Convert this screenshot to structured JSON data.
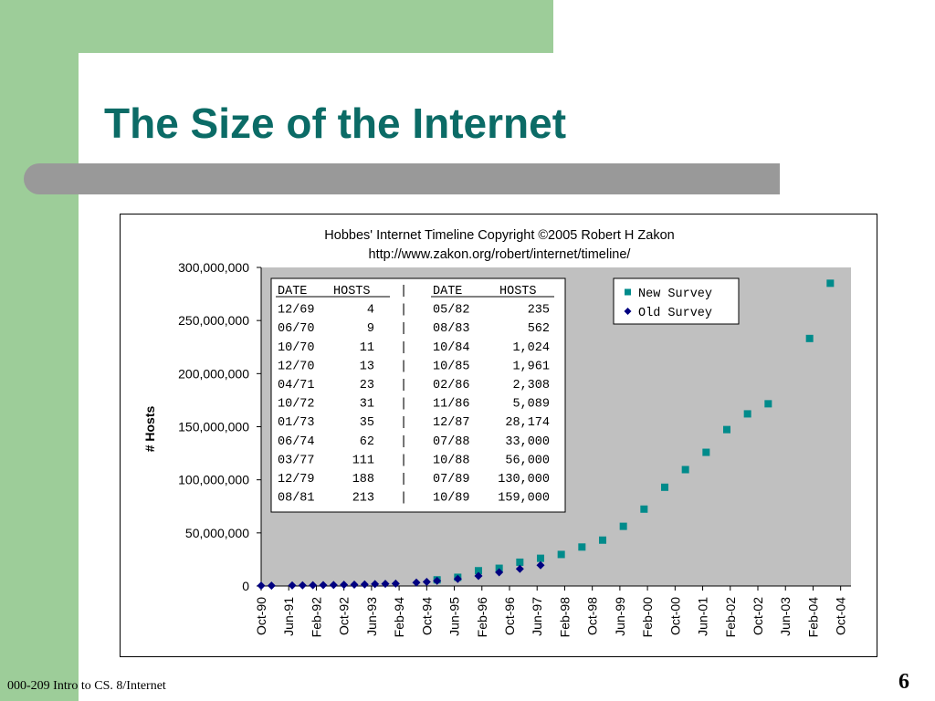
{
  "slide": {
    "title": "The Size of the Internet",
    "footer": "000-209 Intro to CS. 8/Internet",
    "page_number": "6"
  },
  "colors": {
    "accent_green": "#9dcd99",
    "title_teal": "#0b6b66",
    "bar_gray": "#999999",
    "plot_bg": "#c0c0c0",
    "new_survey": "#008b8b",
    "old_survey": "#000080"
  },
  "chart_data": {
    "type": "scatter",
    "title": "Hobbes' Internet Timeline Copyright ©2005 Robert H Zakon",
    "subtitle": "http://www.zakon.org/robert/internet/timeline/",
    "xlabel": "",
    "ylabel": "# Hosts",
    "ylim": [
      0,
      300000000
    ],
    "y_ticks": [
      "300,000,000",
      "250,000,000",
      "200,000,000",
      "150,000,000",
      "100,000,000",
      "50,000,000",
      "0"
    ],
    "y_tick_values": [
      300000000,
      250000000,
      200000000,
      150000000,
      100000000,
      50000000,
      0
    ],
    "x_tick_labels": [
      "Oct-90",
      "Jun-91",
      "Feb-92",
      "Oct-92",
      "Jun-93",
      "Feb-94",
      "Oct-94",
      "Jun-95",
      "Feb-96",
      "Oct-96",
      "Jun-97",
      "Feb-98",
      "Oct-98",
      "Jun-99",
      "Feb-00",
      "Oct-00",
      "Jun-01",
      "Feb-02",
      "Oct-02",
      "Jun-03",
      "Feb-04",
      "Oct-04"
    ],
    "xlim": [
      "1990-10",
      "2005-01"
    ],
    "grid": false,
    "legend_position": "top-right",
    "series": [
      {
        "name": "New Survey",
        "marker": "square",
        "x": [
          "1995-01",
          "1995-07",
          "1996-01",
          "1996-07",
          "1997-01",
          "1997-07",
          "1998-01",
          "1998-07",
          "1999-01",
          "1999-07",
          "2000-01",
          "2000-07",
          "2001-01",
          "2001-07",
          "2002-01",
          "2002-07",
          "2003-01",
          "2004-01",
          "2004-07"
        ],
        "y": [
          5800000,
          8200000,
          14400000,
          16700000,
          22400000,
          26100000,
          29700000,
          36700000,
          43200000,
          56200000,
          72400000,
          93000000,
          109600000,
          125900000,
          147300000,
          162100000,
          171600000,
          233100000,
          285100000
        ]
      },
      {
        "name": "Old Survey",
        "marker": "diamond",
        "x": [
          "1990-10",
          "1991-01",
          "1991-07",
          "1991-10",
          "1992-01",
          "1992-04",
          "1992-07",
          "1992-10",
          "1993-01",
          "1993-04",
          "1993-07",
          "1993-10",
          "1994-01",
          "1994-07",
          "1994-10",
          "1995-01",
          "1995-07",
          "1996-01",
          "1996-07",
          "1997-01",
          "1997-07"
        ],
        "y": [
          313000,
          376000,
          535000,
          617000,
          727000,
          890000,
          992000,
          1136000,
          1313000,
          1486000,
          1776000,
          2056000,
          2217000,
          3212000,
          3864000,
          4852000,
          6642000,
          9472000,
          12881000,
          16146000,
          19540000
        ]
      }
    ],
    "table": {
      "headers": [
        "DATE",
        "HOSTS",
        "|",
        "DATE",
        "HOSTS"
      ],
      "rows": [
        [
          "12/69",
          "4",
          "|",
          "05/82",
          "235"
        ],
        [
          "06/70",
          "9",
          "|",
          "08/83",
          "562"
        ],
        [
          "10/70",
          "11",
          "|",
          "10/84",
          "1,024"
        ],
        [
          "12/70",
          "13",
          "|",
          "10/85",
          "1,961"
        ],
        [
          "04/71",
          "23",
          "|",
          "02/86",
          "2,308"
        ],
        [
          "10/72",
          "31",
          "|",
          "11/86",
          "5,089"
        ],
        [
          "01/73",
          "35",
          "|",
          "12/87",
          "28,174"
        ],
        [
          "06/74",
          "62",
          "|",
          "07/88",
          "33,000"
        ],
        [
          "03/77",
          "111",
          "|",
          "10/88",
          "56,000"
        ],
        [
          "12/79",
          "188",
          "|",
          "07/89",
          "130,000"
        ],
        [
          "08/81",
          "213",
          "|",
          "10/89",
          "159,000"
        ]
      ]
    }
  }
}
